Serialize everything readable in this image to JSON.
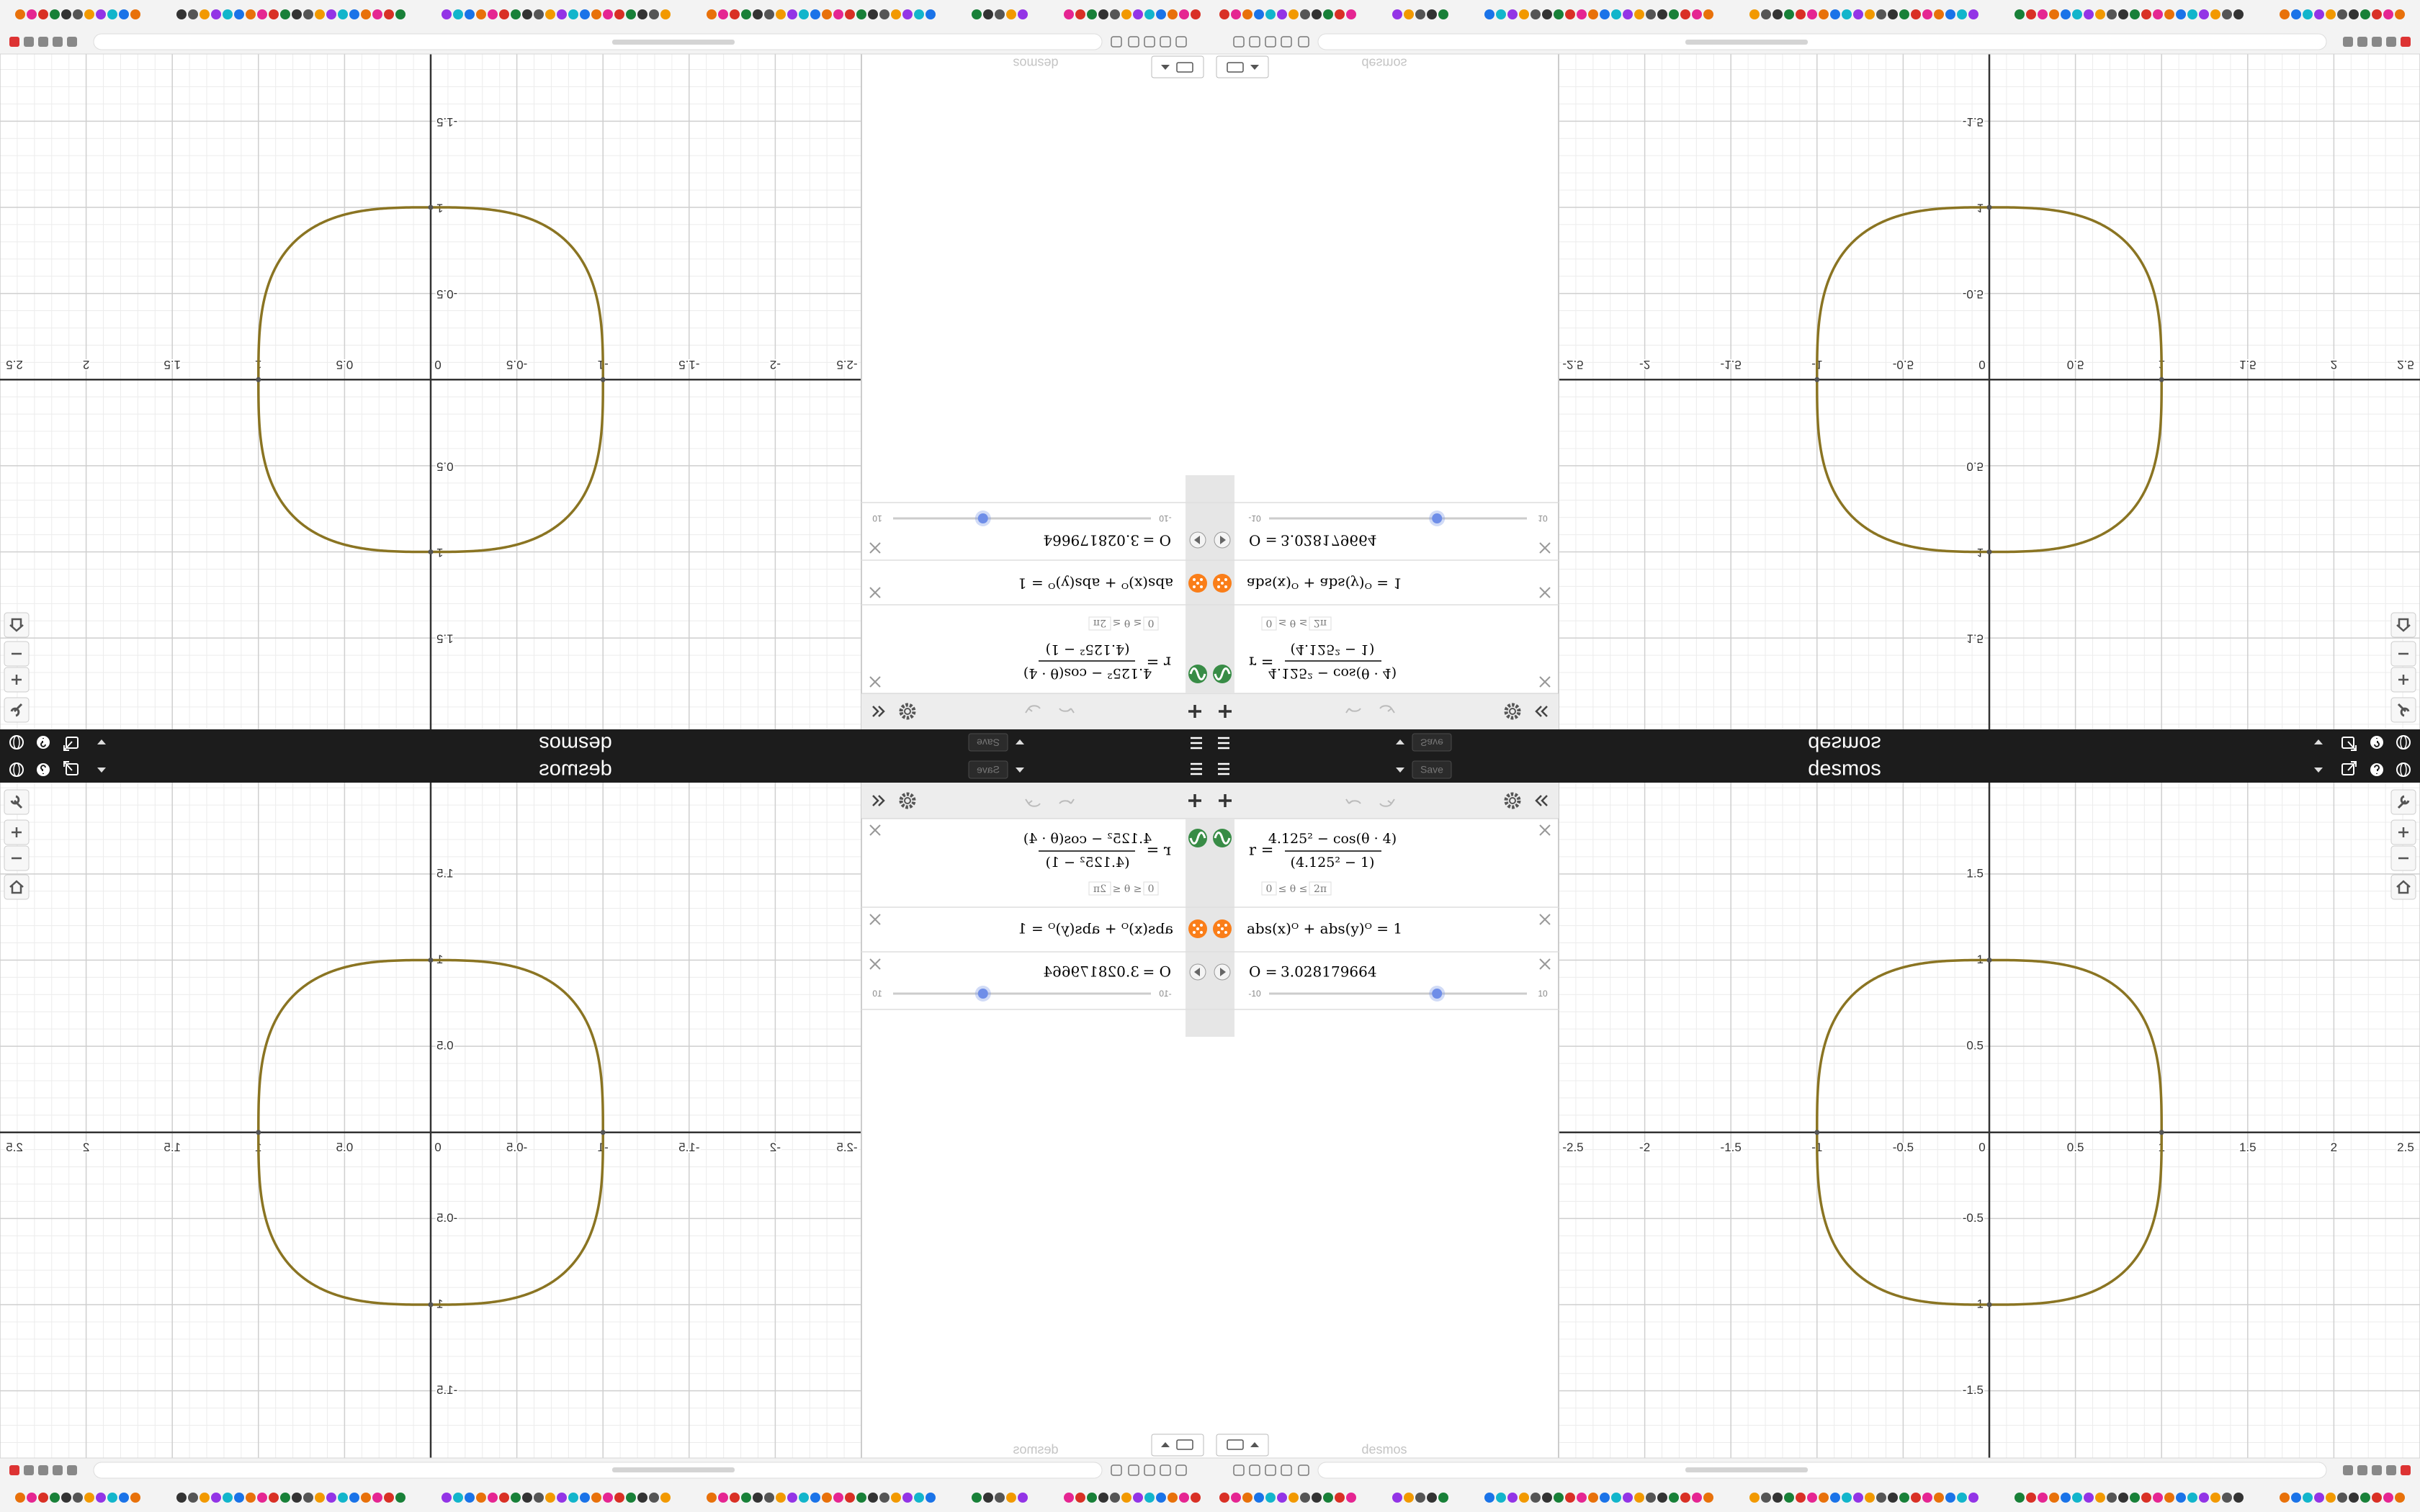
{
  "header": {
    "logo": "desmos",
    "save": "Save"
  },
  "expressions": [
    {
      "lhs": "r =",
      "numerator": "4.125² − cos(θ · 4)",
      "denominator": "(4.125² − 1)",
      "domain_min": "0",
      "domain_relation": "≤ θ ≤",
      "domain_max": "2π",
      "color": "#388c46"
    },
    {
      "text": "abs(x)ᴼ + abs(y)ᴼ = 1",
      "color": "#fa7e19"
    },
    {
      "label": "O =",
      "value": 3.028179664,
      "min": -10,
      "max": 10
    }
  ],
  "graph": {
    "xlim": [
      -2.5,
      2.5
    ],
    "ylim": [
      -1.89,
      2.03
    ],
    "xticks": [
      -2.5,
      -2,
      -1.5,
      -1,
      -0.5,
      0,
      0.5,
      1,
      1.5,
      2,
      2.5
    ],
    "yticks": [
      -1.5,
      -1,
      -0.5,
      0.5,
      1,
      1.5
    ],
    "grid": true,
    "curve_color": "#8a7422"
  }
}
